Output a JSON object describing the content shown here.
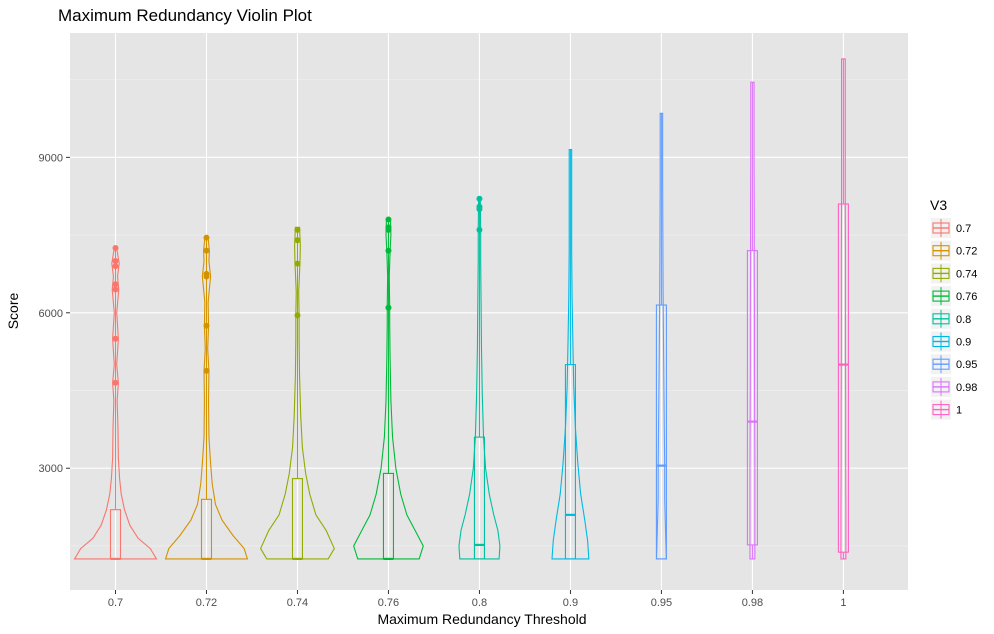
{
  "chart_data": {
    "type": "violin",
    "title": "Maximum Redundancy Violin Plot",
    "xlabel": "Maximum Redundancy Threshold",
    "ylabel": "Score",
    "ylim": [
      650,
      11400
    ],
    "yticks": [
      3000,
      6000,
      9000
    ],
    "y_minor_gridlines": [
      1500,
      4500,
      7500,
      10500
    ],
    "grid": true,
    "background": "#e5e5e5",
    "legend": {
      "title": "V3",
      "position": "right"
    },
    "categories": [
      "0.7",
      "0.72",
      "0.74",
      "0.76",
      "0.8",
      "0.9",
      "0.95",
      "0.98",
      "1"
    ],
    "series": [
      {
        "name": "0.7",
        "color": "#F8766D",
        "min": 1250,
        "q1": 1250,
        "median": 1250,
        "q3": 2200,
        "max": 7250,
        "outliers": [
          4650,
          5500,
          6450,
          6550,
          6900,
          7000,
          7250
        ],
        "density": [
          [
            1250,
            1
          ],
          [
            1450,
            0.85
          ],
          [
            1650,
            0.55
          ],
          [
            1900,
            0.35
          ],
          [
            2200,
            0.22
          ],
          [
            2500,
            0.14
          ],
          [
            2800,
            0.1
          ],
          [
            3200,
            0.07
          ],
          [
            3800,
            0.06
          ],
          [
            4300,
            0.04
          ],
          [
            4650,
            0.07
          ],
          [
            5000,
            0.03
          ],
          [
            5500,
            0.07
          ],
          [
            6000,
            0.03
          ],
          [
            6450,
            0.08
          ],
          [
            6700,
            0.05
          ],
          [
            6950,
            0.09
          ],
          [
            7250,
            0.03
          ]
        ]
      },
      {
        "name": "0.72",
        "color": "#D39200",
        "min": 1250,
        "q1": 1250,
        "median": 1250,
        "q3": 2400,
        "max": 7450,
        "outliers": [
          4880,
          5750,
          6700,
          6750,
          7200,
          7450
        ],
        "density": [
          [
            1250,
            1
          ],
          [
            1450,
            0.92
          ],
          [
            1700,
            0.65
          ],
          [
            2000,
            0.38
          ],
          [
            2300,
            0.22
          ],
          [
            2700,
            0.14
          ],
          [
            3100,
            0.1
          ],
          [
            3600,
            0.06
          ],
          [
            4300,
            0.05
          ],
          [
            4880,
            0.06
          ],
          [
            5300,
            0.03
          ],
          [
            5750,
            0.05
          ],
          [
            6200,
            0.04
          ],
          [
            6700,
            0.1
          ],
          [
            7000,
            0.06
          ],
          [
            7200,
            0.07
          ],
          [
            7450,
            0.04
          ]
        ]
      },
      {
        "name": "0.74",
        "color": "#93AA00",
        "min": 1250,
        "q1": 1250,
        "median": 1250,
        "q3": 2800,
        "max": 7650,
        "outliers": [
          5950,
          6950,
          7400,
          7600
        ],
        "density": [
          [
            1250,
            0.75
          ],
          [
            1450,
            0.9
          ],
          [
            1800,
            0.7
          ],
          [
            2100,
            0.45
          ],
          [
            2500,
            0.3
          ],
          [
            2900,
            0.2
          ],
          [
            3400,
            0.12
          ],
          [
            4000,
            0.08
          ],
          [
            4800,
            0.05
          ],
          [
            5500,
            0.04
          ],
          [
            5950,
            0.04
          ],
          [
            6400,
            0.03
          ],
          [
            6950,
            0.06
          ],
          [
            7300,
            0.07
          ],
          [
            7650,
            0.05
          ]
        ]
      },
      {
        "name": "0.76",
        "color": "#00BA38",
        "min": 1250,
        "q1": 1250,
        "median": 1250,
        "q3": 2900,
        "max": 7800,
        "outliers": [
          6100,
          7200,
          7600,
          7650,
          7800
        ],
        "density": [
          [
            1250,
            0.75
          ],
          [
            1500,
            0.85
          ],
          [
            1800,
            0.65
          ],
          [
            2100,
            0.45
          ],
          [
            2500,
            0.3
          ],
          [
            3000,
            0.18
          ],
          [
            3600,
            0.1
          ],
          [
            4300,
            0.06
          ],
          [
            5100,
            0.04
          ],
          [
            5800,
            0.03
          ],
          [
            6100,
            0.03
          ],
          [
            6700,
            0.02
          ],
          [
            7200,
            0.04
          ],
          [
            7500,
            0.06
          ],
          [
            7800,
            0.05
          ]
        ]
      },
      {
        "name": "0.8",
        "color": "#00C19F",
        "min": 1250,
        "q1": 1250,
        "median": 1520,
        "q3": 3600,
        "max": 8200,
        "outliers": [
          7600,
          8000,
          8050,
          8200
        ],
        "density": [
          [
            1250,
            0.48
          ],
          [
            1500,
            0.5
          ],
          [
            1800,
            0.45
          ],
          [
            2100,
            0.35
          ],
          [
            2500,
            0.24
          ],
          [
            3000,
            0.15
          ],
          [
            3600,
            0.1
          ],
          [
            4400,
            0.07
          ],
          [
            5300,
            0.05
          ],
          [
            6200,
            0.04
          ],
          [
            7000,
            0.03
          ],
          [
            7600,
            0.03
          ],
          [
            8200,
            0.02
          ]
        ]
      },
      {
        "name": "0.9",
        "color": "#00B9E3",
        "min": 1250,
        "q1": 1250,
        "median": 2100,
        "q3": 5000,
        "max": 9150,
        "outliers": [],
        "density": [
          [
            1250,
            0.45
          ],
          [
            1600,
            0.42
          ],
          [
            2000,
            0.35
          ],
          [
            2500,
            0.25
          ],
          [
            3100,
            0.18
          ],
          [
            3800,
            0.12
          ],
          [
            4600,
            0.08
          ],
          [
            5400,
            0.06
          ],
          [
            6300,
            0.04
          ],
          [
            7200,
            0.03
          ],
          [
            8200,
            0.03
          ],
          [
            9150,
            0.03
          ]
        ]
      },
      {
        "name": "0.95",
        "color": "#619CFF",
        "min": 1250,
        "q1": 1250,
        "median": 3050,
        "q3": 6150,
        "max": 9850,
        "outliers": [],
        "density": [
          [
            1250,
            0.12
          ],
          [
            1800,
            0.1
          ],
          [
            2400,
            0.08
          ],
          [
            3000,
            0.08
          ],
          [
            3800,
            0.07
          ],
          [
            4600,
            0.06
          ],
          [
            5500,
            0.05
          ],
          [
            6500,
            0.04
          ],
          [
            7500,
            0.035
          ],
          [
            8500,
            0.03
          ],
          [
            9850,
            0.03
          ]
        ]
      },
      {
        "name": "0.98",
        "color": "#DB72FB",
        "min": 1250,
        "q1": 1520,
        "median": 3900,
        "q3": 7200,
        "max": 10450,
        "outliers": [],
        "density": [
          [
            1250,
            0.06
          ],
          [
            2000,
            0.06
          ],
          [
            3000,
            0.06
          ],
          [
            4000,
            0.055
          ],
          [
            5000,
            0.05
          ],
          [
            6000,
            0.05
          ],
          [
            7000,
            0.045
          ],
          [
            8000,
            0.045
          ],
          [
            9000,
            0.04
          ],
          [
            10450,
            0.04
          ]
        ]
      },
      {
        "name": "1",
        "color": "#FF61C3",
        "min": 1250,
        "q1": 1380,
        "median": 5000,
        "q3": 8100,
        "max": 10900,
        "outliers": [],
        "density": [
          [
            1250,
            0.06
          ],
          [
            2200,
            0.06
          ],
          [
            3200,
            0.055
          ],
          [
            4200,
            0.055
          ],
          [
            5200,
            0.05
          ],
          [
            6200,
            0.05
          ],
          [
            7200,
            0.05
          ],
          [
            8200,
            0.045
          ],
          [
            9200,
            0.045
          ],
          [
            10900,
            0.045
          ]
        ]
      }
    ]
  }
}
